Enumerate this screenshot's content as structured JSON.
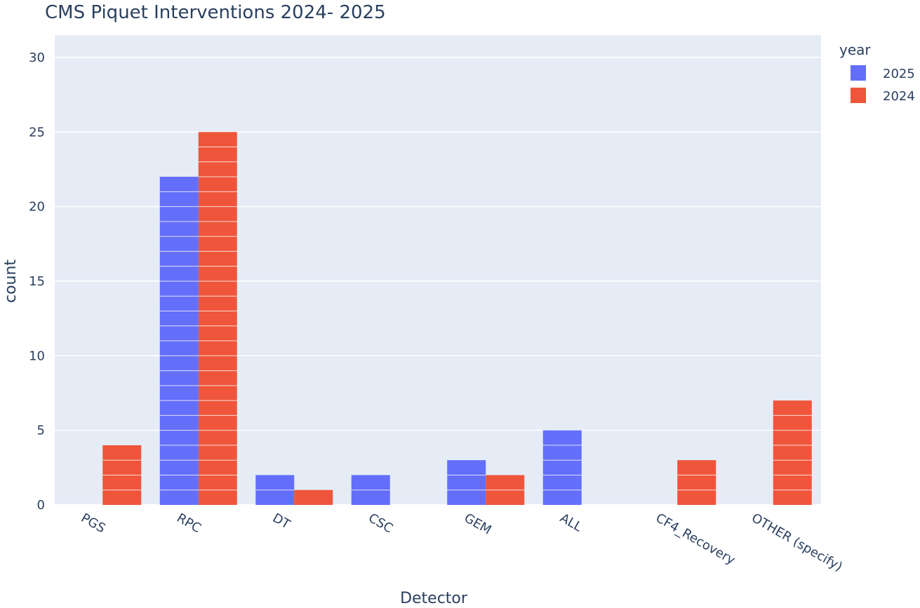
{
  "chart_data": {
    "type": "bar",
    "title": "CMS Piquet Interventions 2024- 2025",
    "xlabel": "Detector",
    "ylabel": "count",
    "categories": [
      "PGS",
      "RPC",
      "DT",
      "CSC",
      "GEM",
      "ALL",
      "CF4_Recovery",
      "OTHER (specify)"
    ],
    "series": [
      {
        "name": "2025",
        "color": "#636efa",
        "values": [
          0,
          22,
          2,
          2,
          3,
          5,
          0,
          0
        ]
      },
      {
        "name": "2024",
        "color": "#ef553b",
        "values": [
          4,
          25,
          1,
          0,
          2,
          0,
          3,
          7
        ]
      }
    ],
    "ylim": [
      0,
      31.5
    ],
    "yticks": [
      0,
      5,
      10,
      15,
      20,
      25,
      30
    ],
    "grid": true,
    "legend_title": "year",
    "legend_position": "top-right",
    "plot_bgcolor": "#e5ecf6"
  }
}
